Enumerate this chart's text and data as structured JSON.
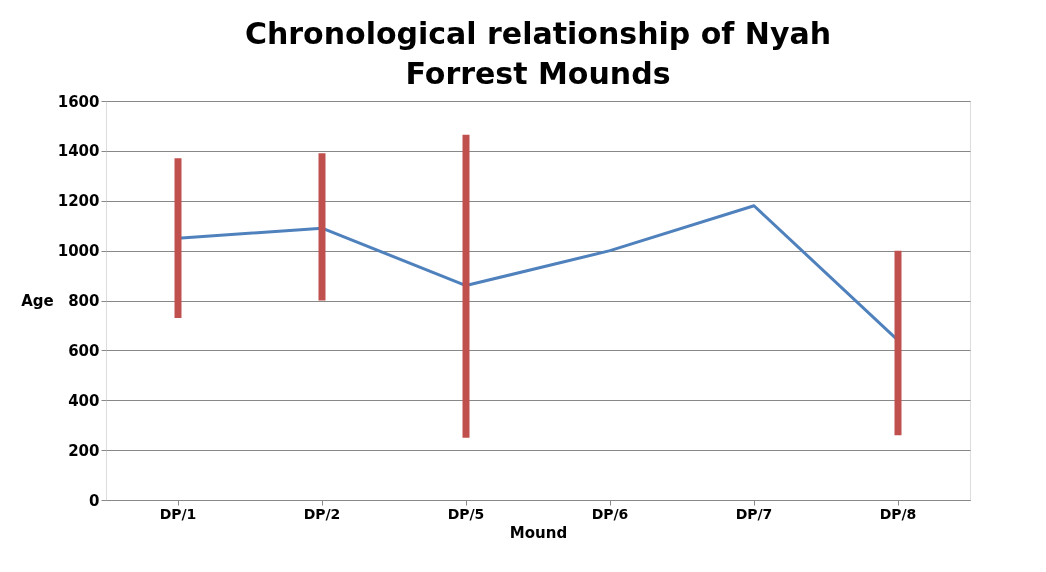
{
  "chart_data": {
    "type": "line",
    "title": "Chronological relationship of Nyah Forrest Mounds",
    "xlabel": "Mound",
    "ylabel": "Age",
    "categories": [
      "DP/1",
      "DP/2",
      "DP/5",
      "DP/6",
      "DP/7",
      "DP/8"
    ],
    "series": [
      {
        "color": "#4f81bd",
        "values": [
          1050,
          1090,
          860,
          1000,
          1180,
          640
        ],
        "errors": [
          [
            730,
            1370
          ],
          [
            800,
            1390
          ],
          [
            250,
            1465
          ],
          null,
          null,
          [
            260,
            1000
          ]
        ]
      }
    ],
    "ylim": [
      0,
      1600
    ],
    "yticks": [
      0,
      200,
      400,
      600,
      800,
      1000,
      1200,
      1400,
      1600
    ],
    "grid": "y",
    "marker": "none",
    "line_style": "solid"
  }
}
